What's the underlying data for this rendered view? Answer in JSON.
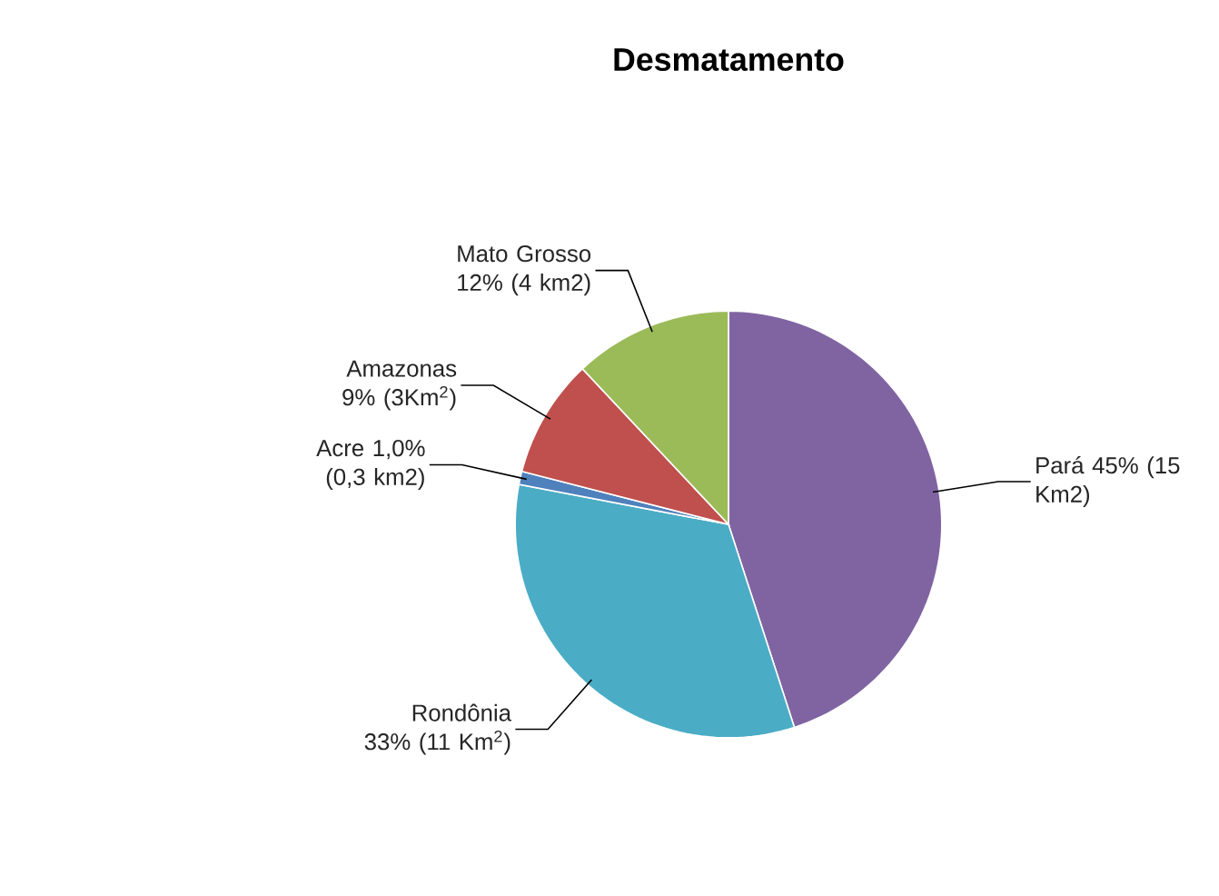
{
  "chart_data": {
    "type": "pie",
    "title": "Desmatamento",
    "categories": [
      "Pará",
      "Rondônia",
      "Acre",
      "Amazonas",
      "Mato Grosso"
    ],
    "values": [
      45,
      33,
      1.0,
      9,
      12
    ],
    "value_labels": [
      "45% (15 Km2)",
      "33% (11 Km$^{2}$)",
      "1,0% (0,3 km2)",
      "9% (3Km$^{2}$)",
      "12% (4 km2)"
    ],
    "colors": [
      "#8064a2",
      "#4bacc6",
      "#4f81bd",
      "#c0504d",
      "#9bbb59"
    ]
  }
}
